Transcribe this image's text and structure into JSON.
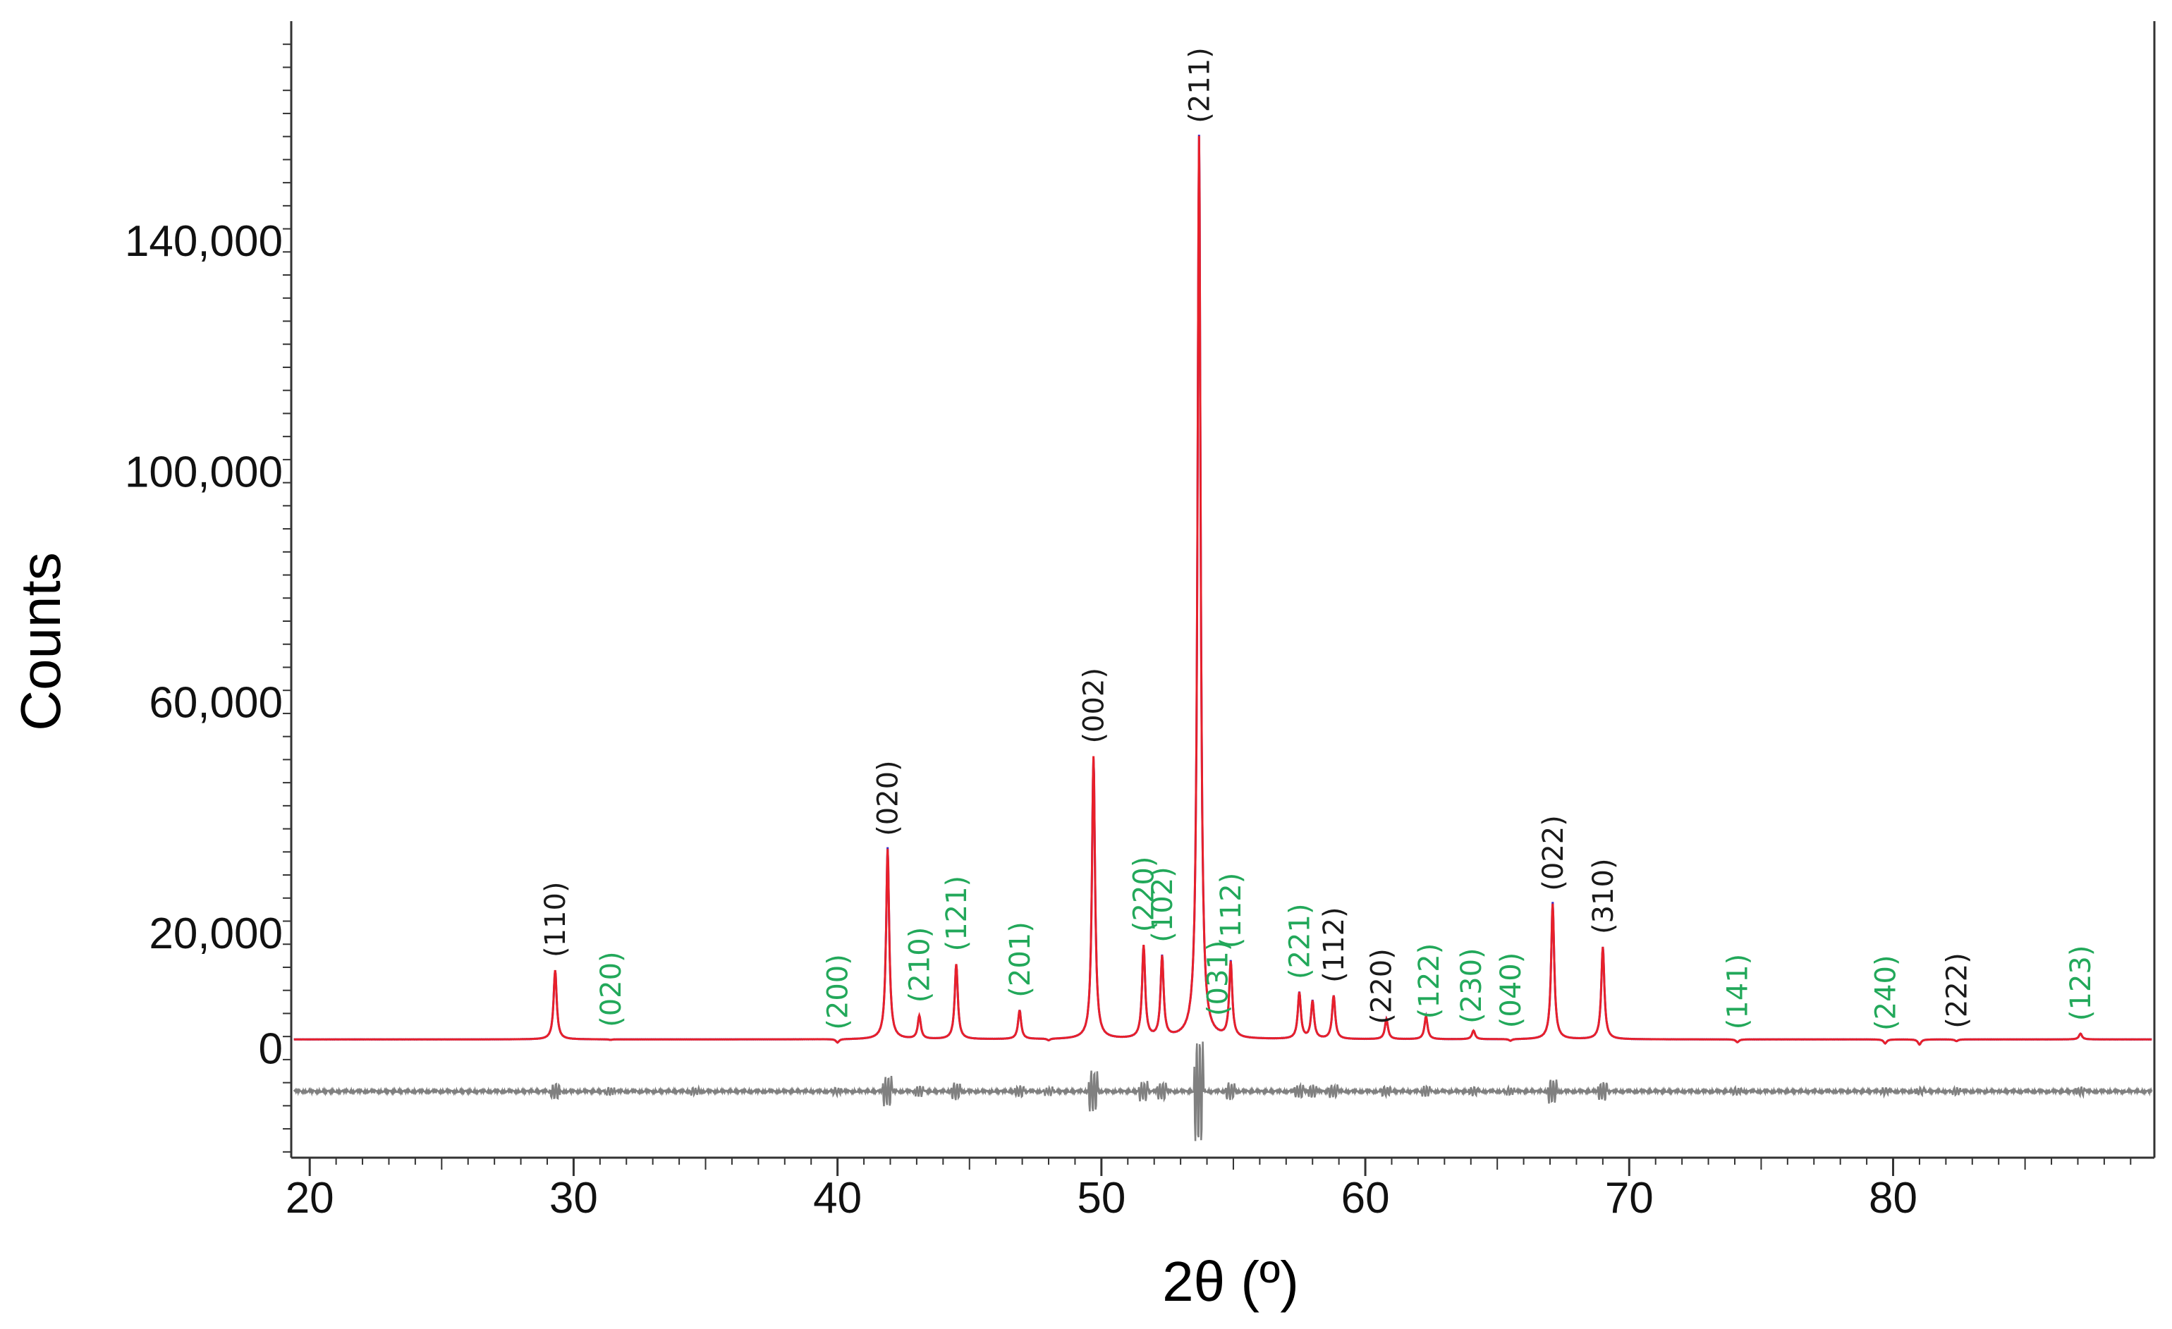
{
  "chart_data": {
    "type": "line",
    "xlabel": "2θ (º)",
    "ylabel": "Counts",
    "xlim": [
      19.3,
      89.9
    ],
    "ylim": [
      -19000,
      178000
    ],
    "x_ticks": [
      20,
      30,
      40,
      50,
      60,
      70,
      80
    ],
    "x_tick_labels": [
      "20",
      "30",
      "40",
      "50",
      "60",
      "70",
      "80"
    ],
    "y_ticks": [
      0,
      20000,
      60000,
      100000,
      140000
    ],
    "y_tick_labels": [
      "0",
      "20,000",
      "60,000",
      "100,000",
      "140,000"
    ],
    "grid": false,
    "legend": "none",
    "colors": {
      "observed": "#3a2ac8",
      "calculated": "#e8202a",
      "difference": "#808080",
      "phase_1_label": "#1a1a1a",
      "phase_2_label": "#22a85a",
      "axis": "#333333"
    },
    "baseline": 1500,
    "difference_offset": -7500,
    "peaks": [
      {
        "x": 29.3,
        "y": 13500
      },
      {
        "x": 31.4,
        "y": 1400
      },
      {
        "x": 34.6,
        "y": 1500
      },
      {
        "x": 40.0,
        "y": 900
      },
      {
        "x": 41.9,
        "y": 34500
      },
      {
        "x": 43.1,
        "y": 5500
      },
      {
        "x": 44.5,
        "y": 14500
      },
      {
        "x": 46.9,
        "y": 6500
      },
      {
        "x": 48.0,
        "y": 1200
      },
      {
        "x": 49.7,
        "y": 50500
      },
      {
        "x": 51.6,
        "y": 17500
      },
      {
        "x": 52.3,
        "y": 15500
      },
      {
        "x": 53.7,
        "y": 158000
      },
      {
        "x": 54.9,
        "y": 14500
      },
      {
        "x": 57.5,
        "y": 9500
      },
      {
        "x": 58.0,
        "y": 8000
      },
      {
        "x": 58.8,
        "y": 9000
      },
      {
        "x": 60.8,
        "y": 5000
      },
      {
        "x": 62.3,
        "y": 5500
      },
      {
        "x": 64.1,
        "y": 3000
      },
      {
        "x": 65.5,
        "y": 1200
      },
      {
        "x": 67.1,
        "y": 25000
      },
      {
        "x": 69.0,
        "y": 17500
      },
      {
        "x": 74.1,
        "y": 1000
      },
      {
        "x": 79.7,
        "y": 800
      },
      {
        "x": 81.0,
        "y": 600
      },
      {
        "x": 82.4,
        "y": 1200
      },
      {
        "x": 87.1,
        "y": 2500
      }
    ],
    "annotations": [
      {
        "text": "(110)",
        "x": 29.3,
        "phase": 1
      },
      {
        "text": "(020)",
        "x": 31.4,
        "phase": 2
      },
      {
        "text": "(200)",
        "x": 40.0,
        "phase": 2
      },
      {
        "text": "(020)",
        "x": 41.9,
        "phase": 1
      },
      {
        "text": "(210)",
        "x": 43.1,
        "phase": 2
      },
      {
        "text": "(121)",
        "x": 44.5,
        "phase": 2
      },
      {
        "text": "(201)",
        "x": 46.9,
        "phase": 2
      },
      {
        "text": "(002)",
        "x": 49.7,
        "phase": 1
      },
      {
        "text": "(220)",
        "x": 51.6,
        "phase": 2
      },
      {
        "text": "(102)",
        "x": 52.3,
        "phase": 2
      },
      {
        "text": "(211)",
        "x": 53.7,
        "phase": 1
      },
      {
        "text": "(031)",
        "x": 54.4,
        "phase": 2
      },
      {
        "text": "(112)",
        "x": 54.9,
        "phase": 2
      },
      {
        "text": "(221)",
        "x": 57.5,
        "phase": 2
      },
      {
        "text": "(112)",
        "x": 58.8,
        "phase": 1
      },
      {
        "text": "(220)",
        "x": 60.6,
        "phase": 1
      },
      {
        "text": "(122)",
        "x": 62.4,
        "phase": 2
      },
      {
        "text": "(230)",
        "x": 64.0,
        "phase": 2
      },
      {
        "text": "(040)",
        "x": 65.5,
        "phase": 2
      },
      {
        "text": "(022)",
        "x": 67.1,
        "phase": 1
      },
      {
        "text": "(310)",
        "x": 69.0,
        "phase": 1
      },
      {
        "text": "(141)",
        "x": 74.1,
        "phase": 2
      },
      {
        "text": "(240)",
        "x": 79.7,
        "phase": 2
      },
      {
        "text": "(222)",
        "x": 82.4,
        "phase": 1
      },
      {
        "text": "(123)",
        "x": 87.1,
        "phase": 2
      }
    ]
  }
}
